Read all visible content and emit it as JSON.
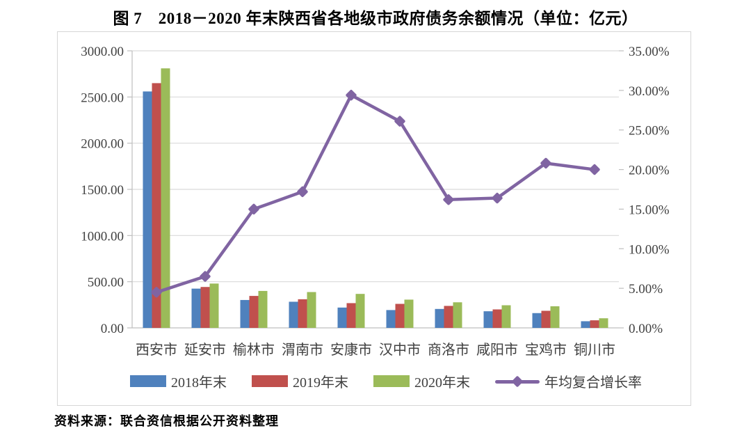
{
  "title": "图 7　2018－2020 年末陕西省各地级市政府债务余额情况（单位：亿元）",
  "source_note": "资料来源：联合资信根据公开资料整理",
  "chart_data": {
    "type": "bar+line",
    "title": "图 7　2018－2020 年末陕西省各地级市政府债务余额情况（单位：亿元）",
    "categories": [
      "西安市",
      "延安市",
      "榆林市",
      "渭南市",
      "安康市",
      "汉中市",
      "商洛市",
      "咸阳市",
      "宝鸡市",
      "铜川市"
    ],
    "bar_series": [
      {
        "name": "2018年末",
        "color": "#4F81BD",
        "values": [
          2560,
          425,
          302,
          283,
          220,
          193,
          205,
          180,
          160,
          72
        ]
      },
      {
        "name": "2019年末",
        "color": "#C0504D",
        "values": [
          2650,
          443,
          346,
          310,
          268,
          260,
          238,
          200,
          185,
          82
        ]
      },
      {
        "name": "2020年末",
        "color": "#9BBB59",
        "values": [
          2810,
          480,
          400,
          388,
          368,
          306,
          277,
          245,
          234,
          104
        ]
      }
    ],
    "line_series": {
      "name": "年均复合增长率",
      "color": "#8064A2",
      "values_pct": [
        4.5,
        6.5,
        15.0,
        17.2,
        29.4,
        26.1,
        16.2,
        16.4,
        20.8,
        20.0
      ]
    },
    "left_axis": {
      "min": 0,
      "max": 3000,
      "step": 500,
      "tick_labels": [
        "0.00",
        "500.00",
        "1000.00",
        "1500.00",
        "2000.00",
        "2500.00",
        "3000.00"
      ]
    },
    "right_axis": {
      "min": 0,
      "max": 35,
      "step": 5,
      "tick_labels": [
        "0.00%",
        "5.00%",
        "10.00%",
        "15.00%",
        "20.00%",
        "25.00%",
        "30.00%",
        "35.00%"
      ]
    },
    "grid": true,
    "legend_position": "bottom",
    "colors": {
      "gridline": "#D9D9D9",
      "axis_line": "#BFBFBF",
      "tick_text": "#404040",
      "frame_border": "#D6D6D6"
    }
  }
}
